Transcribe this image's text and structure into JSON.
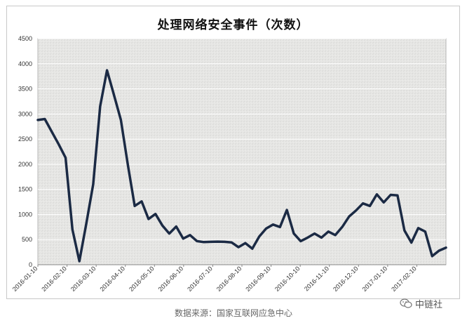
{
  "chart_data": {
    "type": "line",
    "title": "处理网络安全事件（次数）",
    "ylim": [
      0,
      4500
    ],
    "yticks": [
      0,
      500,
      1000,
      1500,
      2000,
      2500,
      3000,
      3500,
      4000,
      4500
    ],
    "x_tick_labels": [
      "2016-01-10",
      "2016-02-10",
      "2016-03-10",
      "2016-04-10",
      "2016-05-10",
      "2016-06-10",
      "2016-07-10",
      "2016-08-10",
      "2016-09-10",
      "2016-10-10",
      "2016-11-10",
      "2016-12-10",
      "2017-01-10",
      "2017-02-10"
    ],
    "grid": true,
    "line_color": "#1b2a44",
    "series": [
      {
        "values": [
          2880,
          2900,
          2650,
          2400,
          2130,
          700,
          70,
          820,
          1600,
          3150,
          3870,
          3380,
          2880,
          2000,
          1170,
          1260,
          910,
          1010,
          780,
          620,
          760,
          520,
          590,
          470,
          450,
          455,
          460,
          455,
          445,
          350,
          430,
          320,
          560,
          720,
          800,
          750,
          1090,
          620,
          470,
          540,
          620,
          540,
          660,
          590,
          750,
          960,
          1080,
          1220,
          1170,
          1400,
          1240,
          1390,
          1380,
          680,
          440,
          730,
          660,
          170,
          280,
          340
        ]
      }
    ]
  },
  "footer": {
    "source": "数据来源：国家互联网应急中心",
    "brand": "中链社"
  }
}
